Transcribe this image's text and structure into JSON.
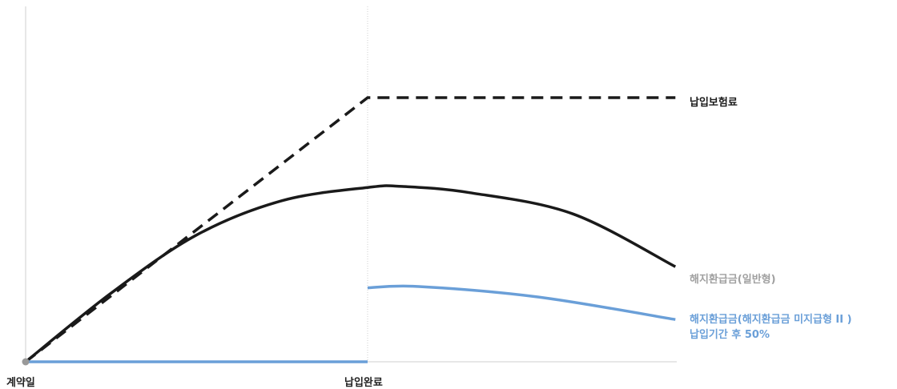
{
  "chart_data": {
    "type": "line",
    "title": "",
    "xlabel": "",
    "ylabel": "",
    "x_ticks": [
      "계약일",
      "납입완료"
    ],
    "xlim": [
      0,
      2
    ],
    "ylim": [
      0,
      100
    ],
    "grid": false,
    "legend": "inline-right",
    "series": [
      {
        "name": "납입보험료",
        "style": "dashed",
        "color": "#1a1a1a",
        "points": [
          [
            0,
            0
          ],
          [
            1,
            100
          ],
          [
            1.9,
            100
          ]
        ]
      },
      {
        "name": "해지환급금(일반형)",
        "style": "solid",
        "color": "#1a1a1a",
        "points": [
          [
            0,
            0
          ],
          [
            0.25,
            26
          ],
          [
            0.5,
            48
          ],
          [
            0.75,
            61
          ],
          [
            1,
            66
          ],
          [
            1.1,
            66.4
          ],
          [
            1.3,
            64
          ],
          [
            1.6,
            56
          ],
          [
            1.9,
            36
          ]
        ]
      },
      {
        "name": "해지환급금(해지환급금 미지급형 II )",
        "name_line2": "납입기간 후 50%",
        "style": "solid",
        "color": "#6a9fd8",
        "points": [
          [
            0,
            0
          ],
          [
            1,
            0
          ],
          [
            1,
            28
          ],
          [
            1.15,
            28.5
          ],
          [
            1.5,
            24.5
          ],
          [
            1.9,
            16
          ]
        ]
      }
    ],
    "colors": {
      "axis": "#cfcfcf",
      "marker": "#999999",
      "muted_label": "#a0a0a0",
      "blue": "#6a9fd8",
      "dark": "#1a1a1a"
    }
  }
}
